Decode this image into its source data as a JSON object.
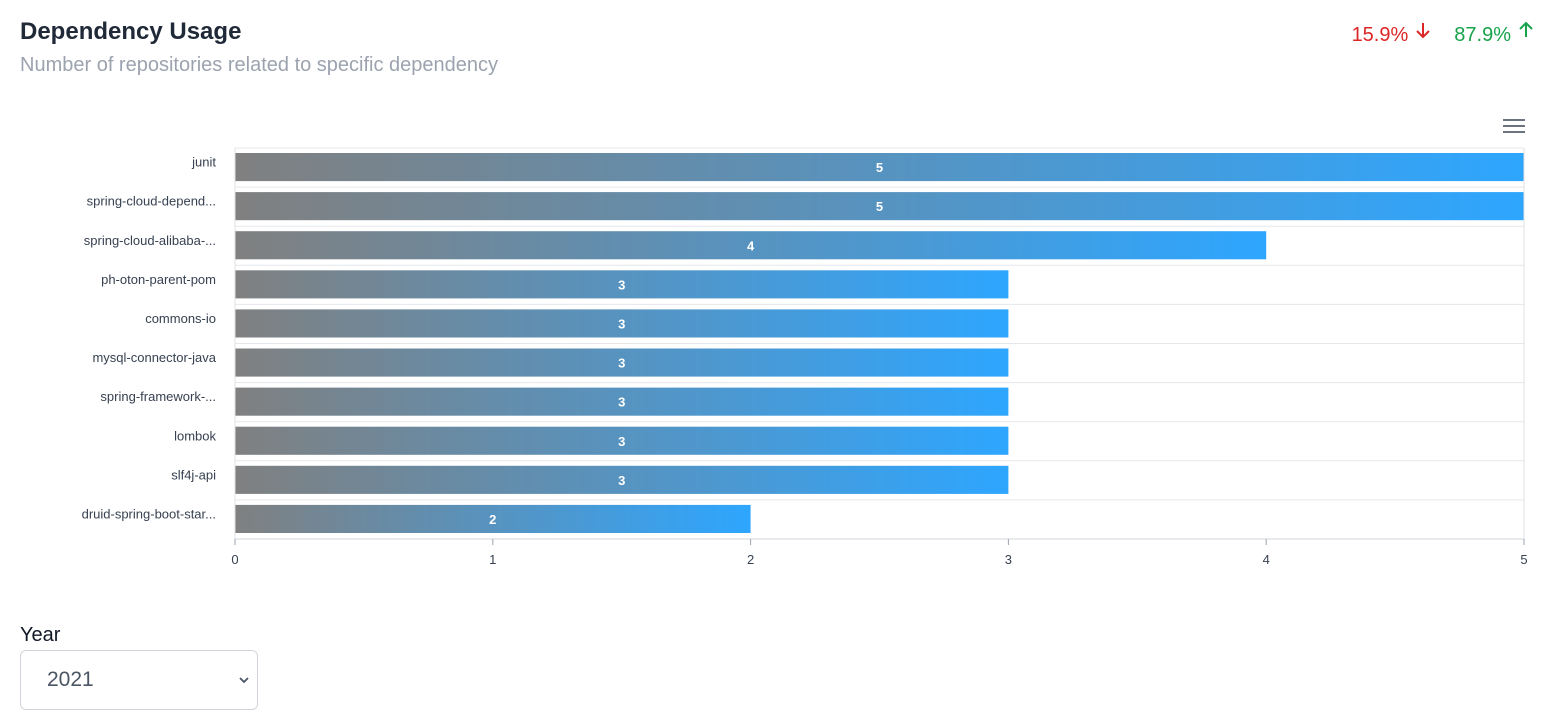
{
  "header": {
    "title": "Dependency Usage",
    "subtitle": "Number of repositories related to specific dependency"
  },
  "stats": {
    "down": {
      "value": "15.9%",
      "icon": "arrow-down-icon",
      "color": "#dc2626"
    },
    "up": {
      "value": "87.9%",
      "icon": "arrow-up-icon",
      "color": "#16a34a"
    }
  },
  "toolbar": {
    "menu_icon": "hamburger-menu-icon"
  },
  "chart_data": {
    "type": "bar",
    "orientation": "horizontal",
    "categories": [
      "junit",
      "spring-cloud-depend...",
      "spring-cloud-alibaba-...",
      "ph-oton-parent-pom",
      "commons-io",
      "mysql-connector-java",
      "spring-framework-...",
      "lombok",
      "slf4j-api",
      "druid-spring-boot-star..."
    ],
    "values": [
      5,
      5,
      4,
      3,
      3,
      3,
      3,
      3,
      3,
      2
    ],
    "xlim": [
      0,
      5
    ],
    "xticks": [
      0,
      1,
      2,
      3,
      4,
      5
    ],
    "data_labels": true,
    "grid": true,
    "gradient": [
      "#808080",
      "#2ea6ff"
    ]
  },
  "filter": {
    "label": "Year",
    "selected": "2021"
  }
}
